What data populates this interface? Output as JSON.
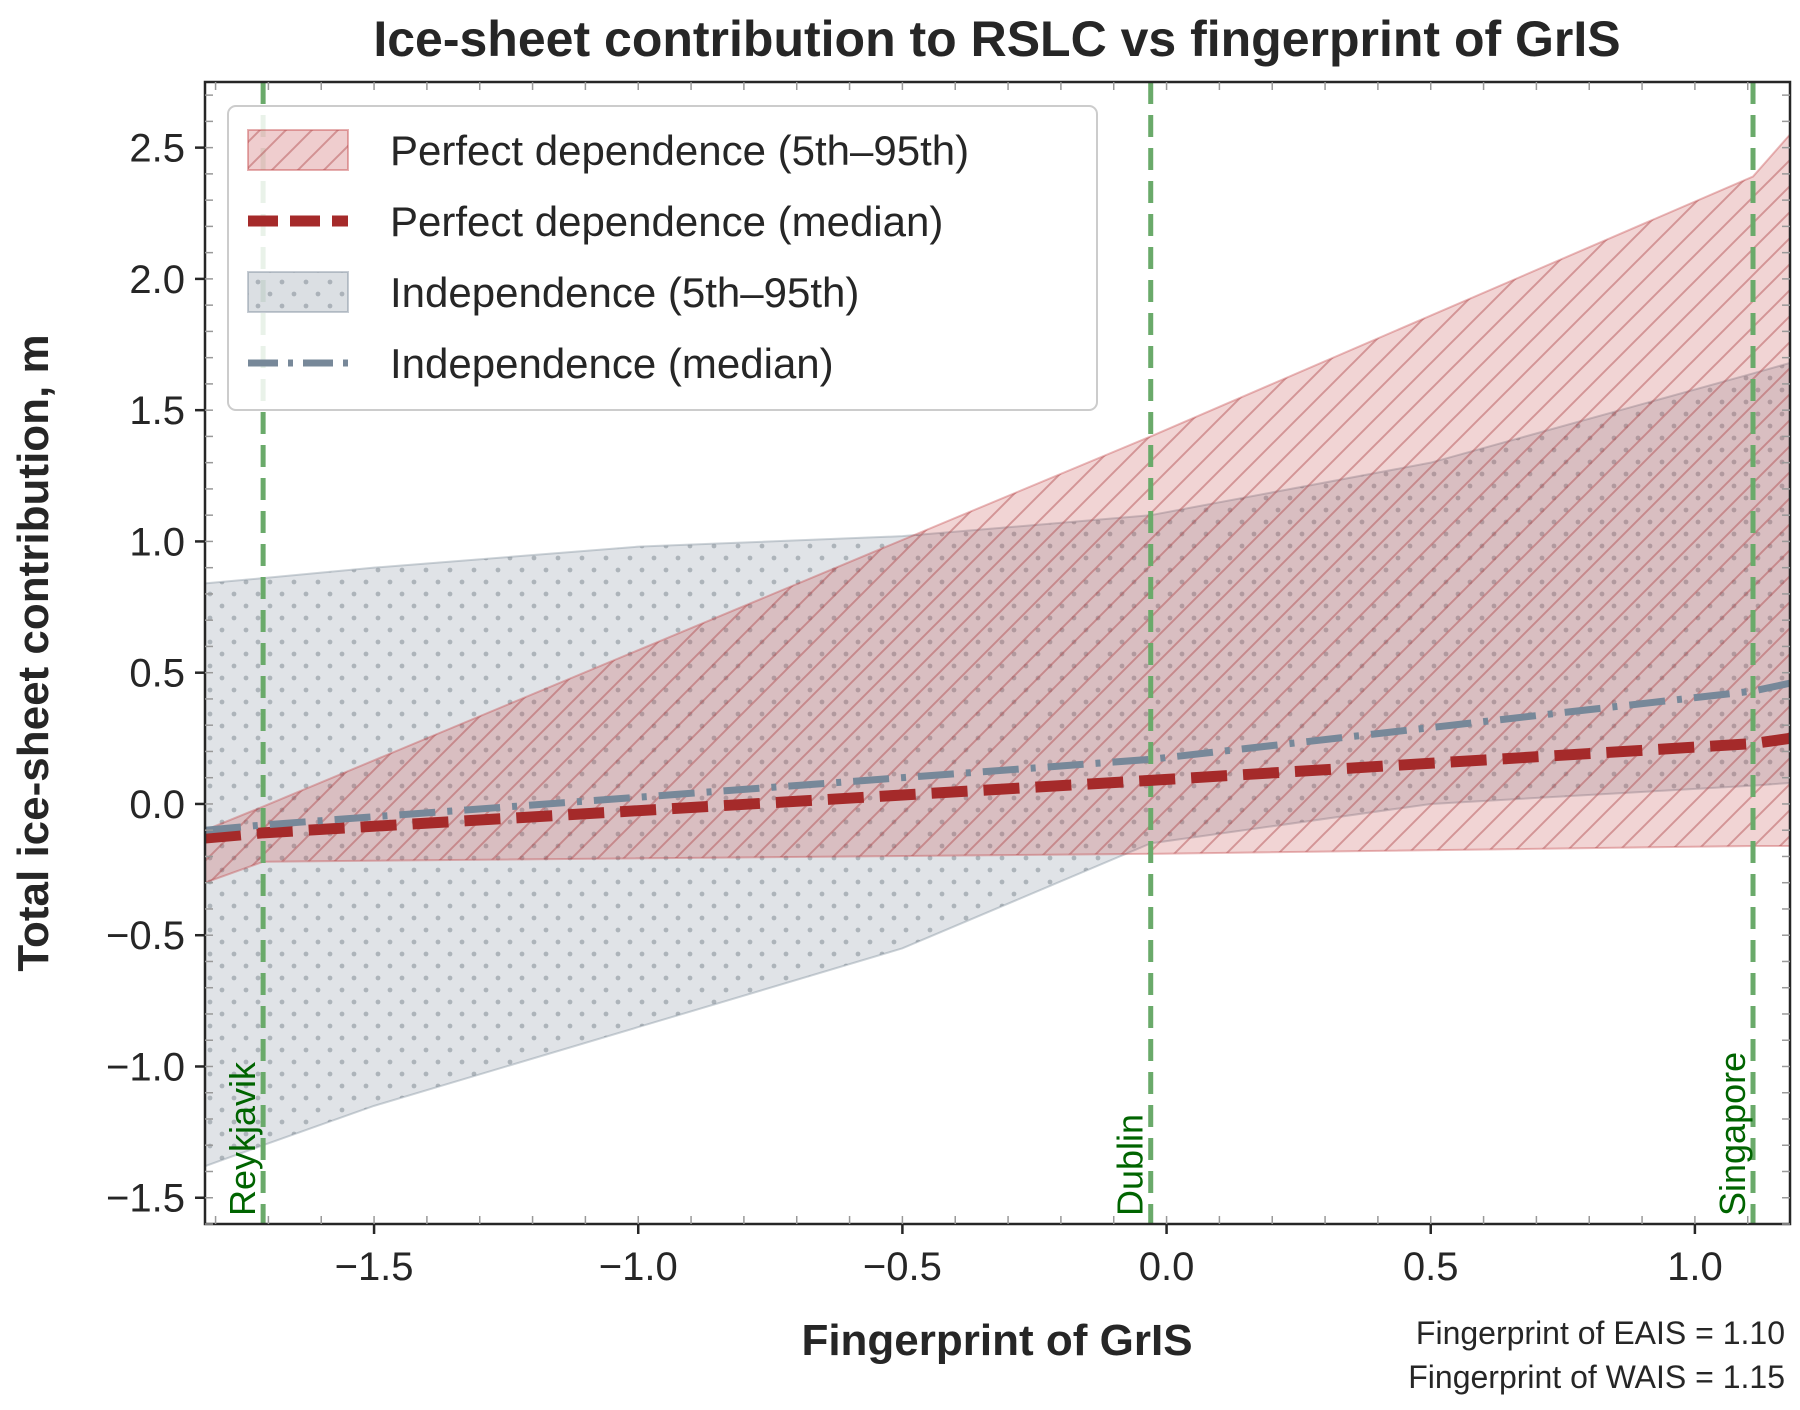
{
  "chart_data": {
    "type": "area",
    "title": "Ice-sheet contribution to RSLC vs fingerprint of GrIS",
    "xlabel": "Fingerprint of GrIS",
    "ylabel": "Total ice-sheet contribution, m",
    "xlim": [
      -1.82,
      1.18
    ],
    "ylim": [
      -1.6,
      2.75
    ],
    "xticks": [
      -1.5,
      -1.0,
      -0.5,
      0.0,
      0.5,
      1.0
    ],
    "xtick_labels": [
      "−1.5",
      "−1.0",
      "−0.5",
      "0.0",
      "0.5",
      "1.0"
    ],
    "yticks": [
      -1.5,
      -1.0,
      -0.5,
      0.0,
      0.5,
      1.0,
      1.5,
      2.0,
      2.5
    ],
    "ytick_labels": [
      "−1.5",
      "−1.0",
      "−0.5",
      "0.0",
      "0.5",
      "1.0",
      "1.5",
      "2.0",
      "2.5"
    ],
    "grid": false,
    "legend_position": "top-left",
    "series": [
      {
        "name": "Perfect dependence (5th–95th)",
        "kind": "band",
        "color": "#c0393b",
        "pattern": "hatch",
        "x": [
          -1.82,
          -1.71,
          -0.03,
          1.11,
          1.18
        ],
        "lower": [
          -0.3,
          -0.22,
          -0.19,
          -0.16,
          -0.16
        ],
        "upper": [
          -0.1,
          -0.01,
          1.4,
          2.39,
          2.55
        ]
      },
      {
        "name": "Perfect dependence (median)",
        "kind": "line",
        "color": "#a52a2a",
        "dash": "dashed",
        "x": [
          -1.82,
          -1.71,
          -0.03,
          1.11,
          1.18
        ],
        "y": [
          -0.13,
          -0.11,
          0.09,
          0.23,
          0.25
        ]
      },
      {
        "name": "Independence (5th–95th)",
        "kind": "band",
        "color": "#708090",
        "pattern": "dots",
        "x": [
          -1.82,
          -1.71,
          -1.5,
          -1.0,
          -0.5,
          -0.03,
          0.5,
          1.11,
          1.18
        ],
        "lower": [
          -1.38,
          -1.3,
          -1.15,
          -0.85,
          -0.55,
          -0.15,
          0.0,
          0.07,
          0.08
        ],
        "upper": [
          0.84,
          0.86,
          0.9,
          0.98,
          1.02,
          1.1,
          1.3,
          1.64,
          1.68
        ]
      },
      {
        "name": "Independence (median)",
        "kind": "line",
        "color": "#778899",
        "dash": "dashdot",
        "x": [
          -1.82,
          -1.71,
          -0.03,
          1.11,
          1.18
        ],
        "y": [
          -0.1,
          -0.08,
          0.17,
          0.43,
          0.46
        ]
      }
    ],
    "vlines": [
      {
        "x": -1.71,
        "label": "Reykjavik"
      },
      {
        "x": -0.03,
        "label": "Dublin"
      },
      {
        "x": 1.11,
        "label": "Singapore"
      }
    ],
    "vline_color": "#6aaa6a",
    "annotations": [
      "Fingerprint of EAIS = 1.10",
      "Fingerprint of WAIS = 1.15"
    ]
  }
}
